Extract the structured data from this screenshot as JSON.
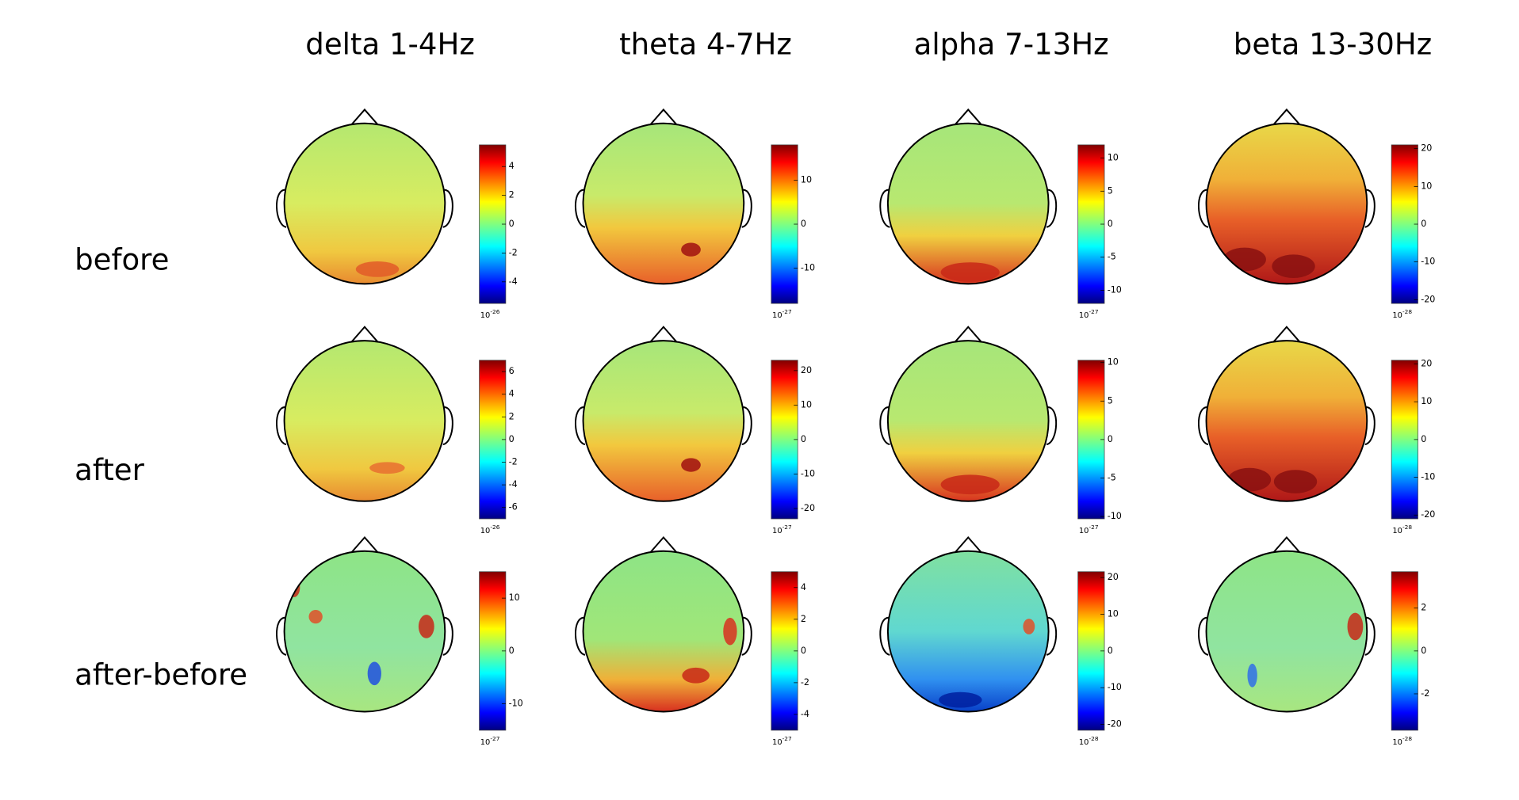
{
  "columns": [
    "delta 1-4Hz",
    "theta 4-7Hz",
    "alpha 7-13Hz",
    "beta 13-30Hz"
  ],
  "rows": [
    "before",
    "after",
    "after-before"
  ],
  "panels": [
    [
      {
        "colorbar": {
          "clim": [
            -5.5,
            5.5
          ],
          "ticks": [
            4,
            2,
            0,
            -2,
            -4
          ],
          "scale_base": "10",
          "scale_exponent": "-26"
        }
      },
      {
        "colorbar": {
          "clim": [
            -18,
            18
          ],
          "ticks": [
            10,
            0,
            -10
          ],
          "scale_base": "10",
          "scale_exponent": "-27"
        }
      },
      {
        "colorbar": {
          "clim": [
            -12,
            12
          ],
          "ticks": [
            10,
            5,
            0,
            -5,
            -10
          ],
          "scale_base": "10",
          "scale_exponent": "-27"
        }
      },
      {
        "colorbar": {
          "clim": [
            -21,
            21
          ],
          "ticks": [
            20,
            10,
            0,
            -10,
            -20
          ],
          "scale_base": "10",
          "scale_exponent": "-28"
        }
      }
    ],
    [
      {
        "colorbar": {
          "clim": [
            -7,
            7
          ],
          "ticks": [
            6,
            4,
            2,
            0,
            -2,
            -4,
            -6
          ],
          "scale_base": "10",
          "scale_exponent": "-26"
        }
      },
      {
        "colorbar": {
          "clim": [
            -23,
            23
          ],
          "ticks": [
            20,
            10,
            0,
            -10,
            -20
          ],
          "scale_base": "10",
          "scale_exponent": "-27"
        }
      },
      {
        "colorbar": {
          "clim": [
            -10.3,
            10.3
          ],
          "ticks": [
            10,
            5,
            0,
            -5,
            -10
          ],
          "scale_base": "10",
          "scale_exponent": "-27"
        }
      },
      {
        "colorbar": {
          "clim": [
            -21,
            21
          ],
          "ticks": [
            20,
            10,
            0,
            -10,
            -20
          ],
          "scale_base": "10",
          "scale_exponent": "-28"
        }
      }
    ],
    [
      {
        "colorbar": {
          "clim": [
            -15,
            15
          ],
          "ticks": [
            10,
            0,
            -10
          ],
          "scale_base": "10",
          "scale_exponent": "-27"
        }
      },
      {
        "colorbar": {
          "clim": [
            -5,
            5
          ],
          "ticks": [
            4,
            2,
            0,
            -2,
            -4
          ],
          "scale_base": "10",
          "scale_exponent": "-27"
        }
      },
      {
        "colorbar": {
          "clim": [
            -21.6,
            21.6
          ],
          "ticks": [
            20,
            10,
            0,
            -10,
            -20
          ],
          "scale_base": "10",
          "scale_exponent": "-28"
        }
      },
      {
        "colorbar": {
          "clim": [
            -3.7,
            3.7
          ],
          "ticks": [
            2,
            0,
            -2
          ],
          "scale_base": "10",
          "scale_exponent": "-28"
        }
      }
    ]
  ]
}
